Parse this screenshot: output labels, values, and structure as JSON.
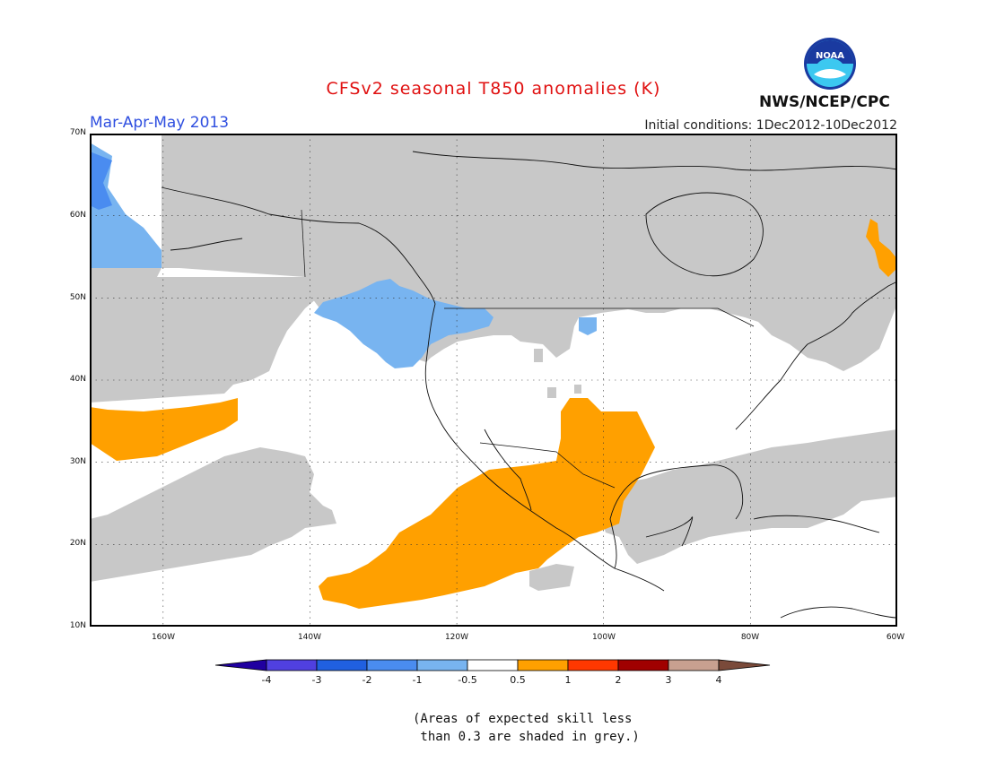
{
  "title": "CFSv2 seasonal T850 anomalies (K)",
  "season": "Mar-Apr-May 2013",
  "initial_conditions": "Initial conditions: 1Dec2012-10Dec2012",
  "agency": "NWS/NCEP/CPC",
  "logo_text": "NOAA",
  "map": {
    "lat_labels": [
      "70N",
      "60N",
      "50N",
      "40N",
      "30N",
      "20N",
      "10N"
    ],
    "lon_labels": [
      "160W",
      "140W",
      "120W",
      "100W",
      "80W",
      "60W"
    ],
    "extent": {
      "lon_min": -170,
      "lon_max": -60,
      "lat_min": 10,
      "lat_max": 70
    },
    "colors": {
      "grey": "#c8c8c8",
      "white": "#ffffff",
      "blue_light": "#78b4f0",
      "blue_mid": "#4a8cf0",
      "orange": "#ffa000"
    }
  },
  "colorbar": {
    "labels": [
      "-4",
      "-3",
      "-2",
      "-1",
      "-0.5",
      "0.5",
      "1",
      "2",
      "3",
      "4"
    ],
    "colors": [
      "#2000a0",
      "#5040e0",
      "#2060e0",
      "#4a8cf0",
      "#78b4f0",
      "#ffffff",
      "#ffa000",
      "#ff3800",
      "#a00000",
      "#c8a090",
      "#7a4a3a"
    ]
  },
  "note_lines": [
    "(Areas of expected skill less",
    " than 0.3 are shaded in grey.)"
  ]
}
